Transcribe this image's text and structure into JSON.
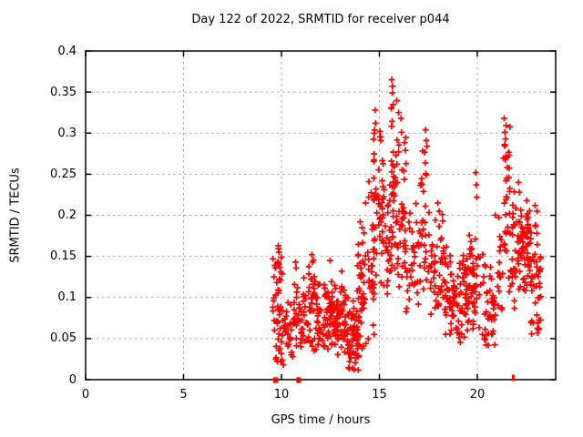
{
  "chart_data": {
    "type": "scatter",
    "title": "Day 122 of 2022, SRMTID for receiver p044",
    "xlabel": "GPS time / hours",
    "ylabel": "SRMTID / TECUs",
    "xlim": [
      0,
      24
    ],
    "ylim": [
      0,
      0.4
    ],
    "x_ticks": [
      0,
      5,
      10,
      15,
      20
    ],
    "x_tick_labels": [
      "0",
      "5",
      "10",
      "15",
      "20"
    ],
    "y_ticks": [
      0,
      0.05,
      0.1,
      0.15,
      0.2,
      0.25,
      0.3,
      0.35,
      0.4
    ],
    "y_tick_labels": [
      "0",
      "0.05",
      "0.1",
      "0.15",
      "0.2",
      "0.25",
      "0.3",
      "0.35",
      "0.4"
    ],
    "grid": true,
    "grid_color": "#a8a8a8",
    "axis_color": "#000000",
    "marker": "plus",
    "marker_color": "#ff0000",
    "legend": "none",
    "prng_seed": 7,
    "cluster_fields": [
      "x_start",
      "x_end",
      "y_center",
      "y_spread",
      "y_min",
      "y_max",
      "count"
    ],
    "clusters": [
      [
        9.55,
        10.05,
        0.085,
        0.04,
        0.02,
        0.165,
        48
      ],
      [
        10.0,
        10.6,
        0.05,
        0.026,
        0.006,
        0.105,
        30
      ],
      [
        10.6,
        11.2,
        0.075,
        0.03,
        0.025,
        0.145,
        40
      ],
      [
        11.2,
        11.8,
        0.085,
        0.032,
        0.03,
        0.155,
        45
      ],
      [
        11.8,
        12.65,
        0.078,
        0.026,
        0.035,
        0.148,
        75
      ],
      [
        12.65,
        13.3,
        0.072,
        0.026,
        0.03,
        0.13,
        60
      ],
      [
        13.3,
        13.95,
        0.05,
        0.028,
        0.008,
        0.12,
        65
      ],
      [
        13.85,
        14.35,
        0.11,
        0.045,
        0.03,
        0.195,
        42
      ],
      [
        14.35,
        14.75,
        0.15,
        0.055,
        0.04,
        0.245,
        28
      ],
      [
        14.7,
        15.0,
        0.215,
        0.058,
        0.1,
        0.33,
        26
      ],
      [
        15.0,
        15.3,
        0.205,
        0.055,
        0.11,
        0.3,
        28
      ],
      [
        15.3,
        15.6,
        0.165,
        0.048,
        0.09,
        0.265,
        22
      ],
      [
        15.6,
        16.0,
        0.235,
        0.062,
        0.12,
        0.36,
        46
      ],
      [
        16.0,
        16.35,
        0.195,
        0.058,
        0.1,
        0.32,
        28
      ],
      [
        16.35,
        17.1,
        0.165,
        0.05,
        0.08,
        0.275,
        38
      ],
      [
        17.1,
        17.6,
        0.185,
        0.055,
        0.1,
        0.3,
        28
      ],
      [
        17.6,
        18.3,
        0.135,
        0.04,
        0.07,
        0.215,
        46
      ],
      [
        18.3,
        19.5,
        0.105,
        0.032,
        0.045,
        0.175,
        95
      ],
      [
        19.5,
        20.1,
        0.115,
        0.042,
        0.06,
        0.21,
        50
      ],
      [
        20.1,
        20.9,
        0.095,
        0.035,
        0.04,
        0.17,
        44
      ],
      [
        20.9,
        21.3,
        0.13,
        0.045,
        0.06,
        0.205,
        18
      ],
      [
        21.3,
        21.7,
        0.23,
        0.055,
        0.13,
        0.315,
        28
      ],
      [
        21.6,
        22.1,
        0.16,
        0.045,
        0.08,
        0.245,
        32
      ],
      [
        22.1,
        22.7,
        0.165,
        0.032,
        0.1,
        0.235,
        62
      ],
      [
        22.7,
        23.25,
        0.125,
        0.045,
        0.05,
        0.21,
        46
      ]
    ],
    "outlier_points": [
      [
        15.63,
        0.365
      ],
      [
        15.67,
        0.357
      ],
      [
        15.66,
        0.349
      ],
      [
        15.7,
        0.335
      ],
      [
        15.6,
        0.331
      ],
      [
        15.98,
        0.325
      ],
      [
        16.1,
        0.318
      ],
      [
        16.13,
        0.301
      ],
      [
        14.78,
        0.328
      ],
      [
        14.8,
        0.312
      ],
      [
        14.74,
        0.3
      ],
      [
        15.03,
        0.302
      ],
      [
        15.07,
        0.291
      ],
      [
        17.36,
        0.304
      ],
      [
        17.39,
        0.291
      ],
      [
        17.43,
        0.284
      ],
      [
        16.33,
        0.279
      ],
      [
        16.36,
        0.263
      ],
      [
        21.37,
        0.318
      ],
      [
        21.41,
        0.301
      ],
      [
        21.44,
        0.293
      ],
      [
        21.39,
        0.286
      ],
      [
        21.46,
        0.272
      ],
      [
        19.92,
        0.252
      ],
      [
        19.95,
        0.237
      ],
      [
        19.97,
        0.222
      ],
      [
        22.1,
        0.24
      ],
      [
        22.14,
        0.228
      ],
      [
        17.98,
        0.215
      ],
      [
        18.05,
        0.205
      ],
      [
        10.72,
        0.143
      ],
      [
        10.75,
        0.136
      ],
      [
        9.84,
        0.163
      ],
      [
        9.87,
        0.155
      ],
      [
        11.55,
        0.152
      ],
      [
        11.58,
        0.143
      ],
      [
        14.02,
        0.192
      ],
      [
        14.12,
        0.185
      ],
      [
        14.3,
        0.215
      ],
      [
        14.45,
        0.222
      ],
      [
        22.95,
        0.212
      ],
      [
        23.05,
        0.205
      ],
      [
        12.48,
        0.145
      ],
      [
        13.08,
        0.132
      ]
    ],
    "zero_axis_squares_x": [
      9.7,
      10.88
    ],
    "zero_axis_tick_marks_x": [
      21.8,
      21.86
    ]
  }
}
